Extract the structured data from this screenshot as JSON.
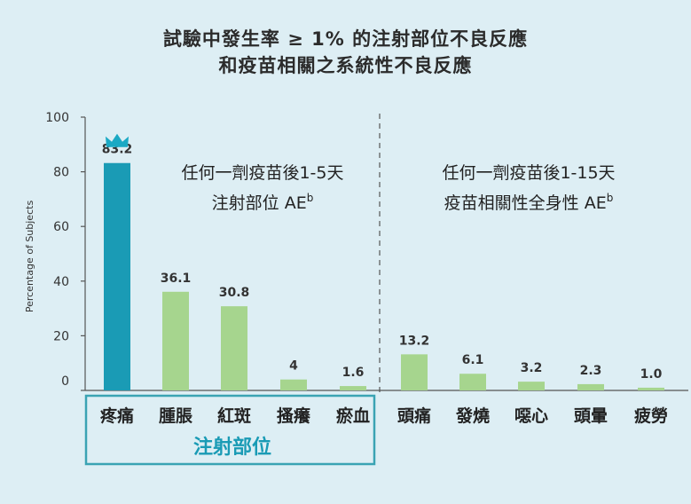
{
  "chart_data": {
    "type": "bar",
    "title_lines": [
      "試驗中發生率 ≥ 1% 的注射部位不良反應",
      "和疫苗相關之系統性不良反應"
    ],
    "ylabel": "Percentage of Subjects",
    "ylim": [
      0,
      100
    ],
    "yticks": [
      "0",
      "20",
      "40",
      "60",
      "80",
      "100"
    ],
    "groups": [
      {
        "label_lines": [
          "任何一劑疫苗後1-5天",
          "注射部位 AE"
        ],
        "superscript": "b",
        "categories": [
          "疼痛",
          "腫脹",
          "紅斑",
          "搔癢",
          "瘀血"
        ],
        "values": [
          83.2,
          36.1,
          30.8,
          4,
          1.6
        ],
        "value_labels": [
          "83.2",
          "36.1",
          "30.8",
          "4",
          "1.6"
        ]
      },
      {
        "label_lines": [
          "任何一劑疫苗後1-15天",
          "疫苗相關性全身性 AE"
        ],
        "superscript": "b",
        "categories": [
          "頭痛",
          "發燒",
          "噁心",
          "頭暈",
          "疲勞"
        ],
        "values": [
          13.2,
          6.1,
          3.2,
          2.3,
          1.0
        ],
        "value_labels": [
          "13.2",
          "6.1",
          "3.2",
          "2.3",
          "1.0"
        ]
      }
    ],
    "highlight_box_label": "注射部位",
    "colors": {
      "highlight_bar": "#1a9bb5",
      "bar": "#a6d58e",
      "highlight_box": "#3aa3b3",
      "highlight_text": "#1a9bb5",
      "marker": "#1aa9c4"
    },
    "marker_icon": "crown-icon",
    "highlighted_category": "疼痛"
  }
}
